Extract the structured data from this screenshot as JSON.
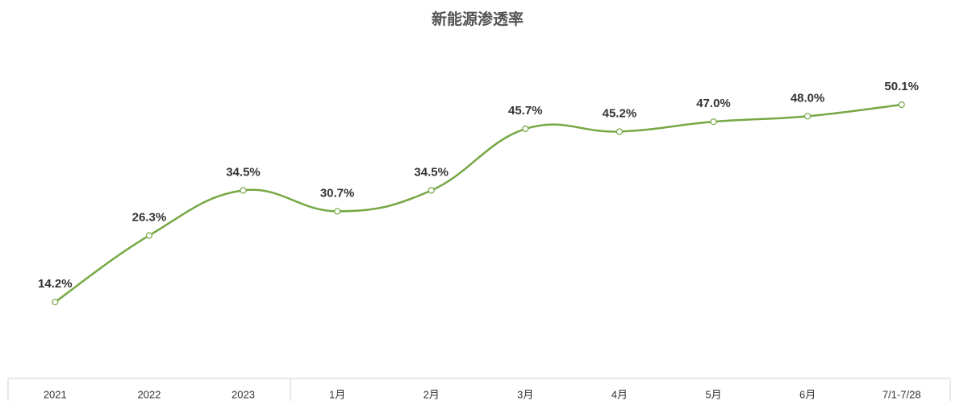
{
  "chart_data": {
    "type": "line",
    "title": "新能源渗透率",
    "categories": [
      "2021",
      "2022",
      "2023",
      "1月",
      "2月",
      "3月",
      "4月",
      "5月",
      "6月",
      "7/1-7/28"
    ],
    "values": [
      14.2,
      26.3,
      34.5,
      30.7,
      34.5,
      45.7,
      45.2,
      47.0,
      48.0,
      50.1
    ],
    "value_labels": [
      "14.2%",
      "26.3%",
      "34.5%",
      "30.7%",
      "34.5%",
      "45.7%",
      "45.2%",
      "47.0%",
      "48.0%",
      "50.1%"
    ],
    "color": "#76a844"
  }
}
